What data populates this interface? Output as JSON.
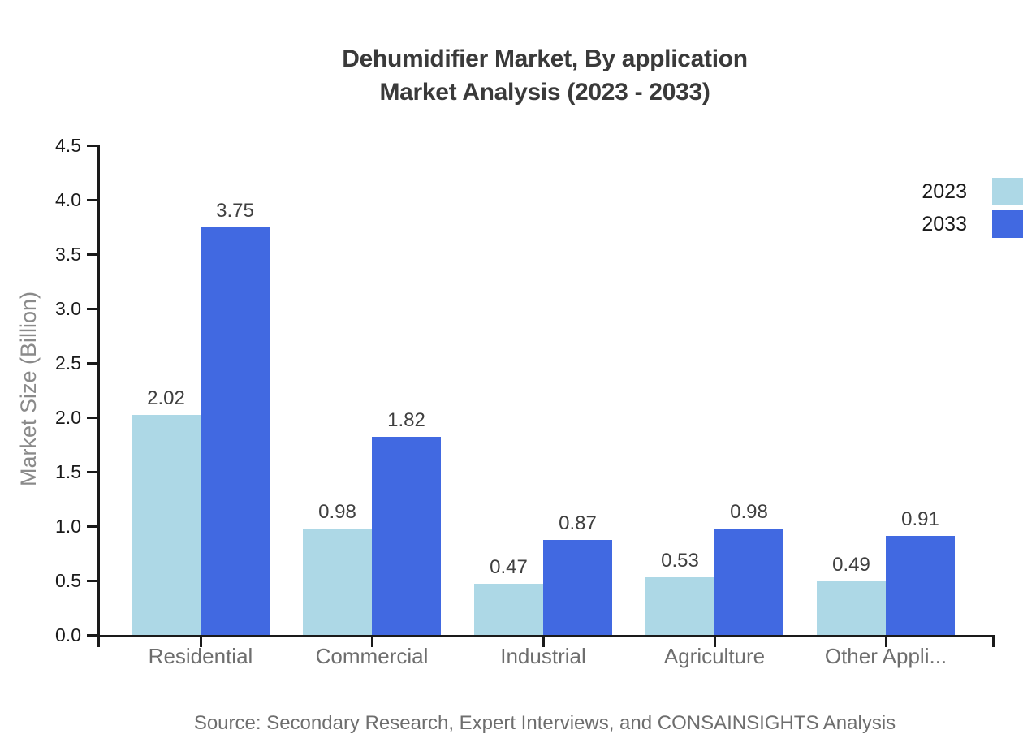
{
  "title": {
    "line1": "Dehumidifier Market, By application",
    "line2": "Market Analysis (2023 - 2033)"
  },
  "source": "Source: Secondary Research, Expert Interviews, and CONSAINSIGHTS Analysis",
  "chart_data": {
    "type": "bar",
    "title": "Dehumidifier Market, By application — Market Analysis (2023 - 2033)",
    "categories": [
      "Residential",
      "Commercial",
      "Industrial",
      "Agriculture",
      "Other Appli..."
    ],
    "series": [
      {
        "name": "2023",
        "color": "#ADD8E6",
        "values": [
          2.02,
          0.98,
          0.47,
          0.53,
          0.49
        ]
      },
      {
        "name": "2033",
        "color": "#4169E1",
        "values": [
          3.75,
          1.82,
          0.87,
          0.98,
          0.91
        ]
      }
    ],
    "xlabel": "",
    "ylabel": "Market Size (Billion)",
    "ylim": [
      0.0,
      4.5
    ],
    "ytick_step": 0.5,
    "ytick_labels": [
      "0.0",
      "0.5",
      "1.0",
      "1.5",
      "2.0",
      "2.5",
      "3.0",
      "3.5",
      "4.0",
      "4.5"
    ],
    "grid": false,
    "legend_position": "top-right",
    "value_labels_shown": true,
    "value_label_decimals": 2,
    "axis_color": "#1a1a1a",
    "text_colors": {
      "title": "#3a3a3a",
      "y_axis_title": "#8a8a8a",
      "y_tick_labels": "#1a1a1a",
      "category_labels": "#6e6e6e",
      "value_labels": "#3f3f3f",
      "source": "#6e6e6e"
    }
  }
}
